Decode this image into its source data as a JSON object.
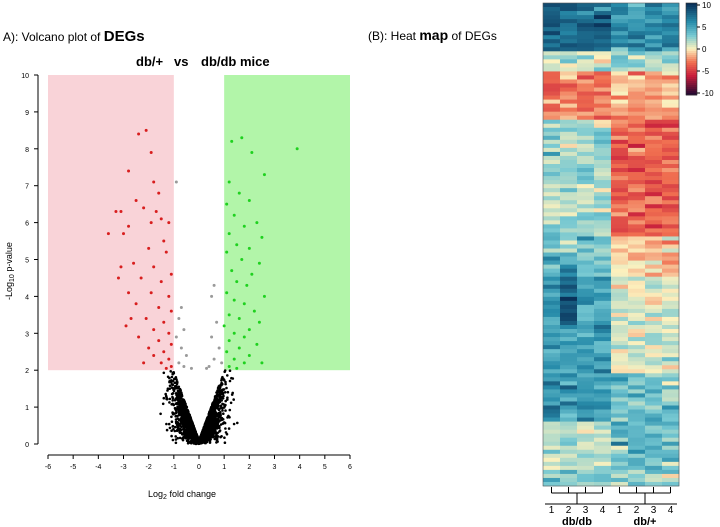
{
  "panel_a": {
    "title_prefix": "A): Volcano plot of ",
    "title_emph": "DEGs",
    "group_left": "db/+",
    "vs_label": "vs",
    "group_right": "db/db  mice"
  },
  "panel_b": {
    "title_prefix": "(B): Heat ",
    "title_emph": "map",
    "title_suffix": " of DEGs"
  },
  "colors": {
    "down_region": "#f9d3d8",
    "up_region": "#b2f5a9",
    "down_point": "#d81e1e",
    "up_point": "#1fd11f",
    "ns_point": "#9a9a9a",
    "low_point": "#000000"
  },
  "chart_data": [
    {
      "type": "scatter",
      "title": "Volcano plot of DEGs",
      "subtitle": "db/+  vs  db/db mice",
      "xlabel": "Log2 fold change",
      "ylabel": "-Log10 p-value",
      "xlim": [
        -6,
        6
      ],
      "ylim": [
        0,
        10
      ],
      "xticks": [
        -6,
        -5,
        -4,
        -3,
        -2,
        -1,
        0,
        1,
        2,
        3,
        4,
        5,
        6
      ],
      "yticks": [
        0,
        1,
        2,
        3,
        4,
        5,
        6,
        7,
        8,
        9,
        10
      ],
      "thresholds": {
        "log2fc": 1,
        "neg_log10_p": 2
      },
      "regions": [
        {
          "name": "downregulated",
          "x": [
            -6,
            -1
          ],
          "y": [
            2,
            10
          ]
        },
        {
          "name": "upregulated",
          "x": [
            1,
            6
          ],
          "y": [
            2,
            10
          ]
        }
      ],
      "series": [
        {
          "name": "down-regulated",
          "points": [
            [
              -2.1,
              8.5
            ],
            [
              -2.4,
              8.4
            ],
            [
              -1.9,
              7.9
            ],
            [
              -2.8,
              7.4
            ],
            [
              -1.8,
              7.1
            ],
            [
              -1.6,
              6.8
            ],
            [
              -2.5,
              6.6
            ],
            [
              -3.3,
              6.3
            ],
            [
              -3.1,
              6.3
            ],
            [
              -2.2,
              6.4
            ],
            [
              -1.7,
              6.3
            ],
            [
              -1.5,
              6.1
            ],
            [
              -1.2,
              6.0
            ],
            [
              -1.9,
              6.0
            ],
            [
              -2.8,
              5.9
            ],
            [
              -3.0,
              5.7
            ],
            [
              -3.6,
              5.7
            ],
            [
              -1.4,
              5.5
            ],
            [
              -2.0,
              5.3
            ],
            [
              -1.3,
              5.2
            ],
            [
              -3.1,
              4.8
            ],
            [
              -2.6,
              4.9
            ],
            [
              -1.8,
              4.8
            ],
            [
              -1.1,
              4.6
            ],
            [
              -3.2,
              4.5
            ],
            [
              -2.3,
              4.5
            ],
            [
              -1.5,
              4.4
            ],
            [
              -2.8,
              4.1
            ],
            [
              -1.9,
              4.1
            ],
            [
              -1.2,
              4.0
            ],
            [
              -2.5,
              3.8
            ],
            [
              -1.6,
              3.7
            ],
            [
              -1.1,
              3.6
            ],
            [
              -2.7,
              3.4
            ],
            [
              -2.1,
              3.4
            ],
            [
              -1.4,
              3.3
            ],
            [
              -2.9,
              3.2
            ],
            [
              -1.8,
              3.1
            ],
            [
              -1.2,
              3.0
            ],
            [
              -2.4,
              2.9
            ],
            [
              -1.6,
              2.8
            ],
            [
              -1.1,
              2.7
            ],
            [
              -2.0,
              2.6
            ],
            [
              -1.4,
              2.5
            ],
            [
              -1.8,
              2.4
            ],
            [
              -1.2,
              2.3
            ],
            [
              -1.5,
              2.2
            ],
            [
              -1.1,
              2.1
            ],
            [
              -2.2,
              2.2
            ],
            [
              -1.3,
              2.05
            ]
          ]
        },
        {
          "name": "up-regulated",
          "points": [
            [
              3.9,
              8.0
            ],
            [
              1.7,
              8.3
            ],
            [
              1.3,
              8.2
            ],
            [
              2.1,
              7.9
            ],
            [
              2.6,
              7.3
            ],
            [
              1.2,
              7.1
            ],
            [
              1.6,
              6.8
            ],
            [
              2.0,
              6.6
            ],
            [
              1.1,
              6.5
            ],
            [
              1.4,
              6.2
            ],
            [
              2.3,
              6.0
            ],
            [
              1.8,
              5.9
            ],
            [
              1.2,
              5.7
            ],
            [
              2.5,
              5.6
            ],
            [
              1.5,
              5.4
            ],
            [
              2.0,
              5.3
            ],
            [
              1.1,
              5.2
            ],
            [
              1.7,
              5.0
            ],
            [
              2.4,
              4.9
            ],
            [
              1.3,
              4.7
            ],
            [
              2.1,
              4.6
            ],
            [
              1.5,
              4.4
            ],
            [
              1.9,
              4.3
            ],
            [
              1.1,
              4.1
            ],
            [
              2.6,
              4.0
            ],
            [
              1.4,
              3.9
            ],
            [
              1.8,
              3.8
            ],
            [
              2.2,
              3.6
            ],
            [
              1.2,
              3.5
            ],
            [
              1.6,
              3.4
            ],
            [
              2.4,
              3.3
            ],
            [
              1.0,
              3.2
            ],
            [
              2.0,
              3.1
            ],
            [
              1.4,
              3.0
            ],
            [
              1.8,
              2.9
            ],
            [
              1.2,
              2.8
            ],
            [
              2.3,
              2.7
            ],
            [
              1.6,
              2.6
            ],
            [
              1.1,
              2.5
            ],
            [
              2.0,
              2.4
            ],
            [
              1.4,
              2.3
            ],
            [
              1.8,
              2.2
            ],
            [
              1.2,
              2.1
            ],
            [
              2.5,
              2.2
            ],
            [
              1.5,
              2.05
            ]
          ]
        },
        {
          "name": "not-significant",
          "points": [
            [
              -0.9,
              7.1
            ],
            [
              -0.7,
              3.7
            ],
            [
              -0.8,
              3.4
            ],
            [
              -0.6,
              3.1
            ],
            [
              -0.9,
              2.9
            ],
            [
              -0.7,
              2.6
            ],
            [
              -0.5,
              2.4
            ],
            [
              -0.8,
              2.2
            ],
            [
              -0.6,
              2.1
            ],
            [
              0.6,
              4.3
            ],
            [
              0.5,
              4.0
            ],
            [
              0.7,
              3.3
            ],
            [
              0.5,
              2.9
            ],
            [
              0.8,
              2.6
            ],
            [
              0.6,
              2.3
            ],
            [
              0.9,
              2.2
            ],
            [
              0.4,
              2.1
            ],
            [
              -0.3,
              2.05
            ],
            [
              0.3,
              2.05
            ]
          ]
        },
        {
          "name": "not-significant-low",
          "description": "dense cloud of genes with p-value above 0.01",
          "points": []
        }
      ]
    },
    {
      "type": "heatmap",
      "title": "Heat map of DEGs",
      "columns": [
        "1",
        "2",
        "3",
        "4",
        "1",
        "2",
        "3",
        "4"
      ],
      "column_groups": [
        {
          "label": "db/db",
          "columns": [
            0,
            1,
            2,
            3
          ]
        },
        {
          "label": "db/+",
          "columns": [
            4,
            5,
            6,
            7
          ]
        }
      ],
      "color_scale": {
        "min": -10,
        "max": 10,
        "ticks": [
          "10",
          "5",
          "0",
          "-5",
          "-10"
        ]
      },
      "rows": 120
    }
  ]
}
